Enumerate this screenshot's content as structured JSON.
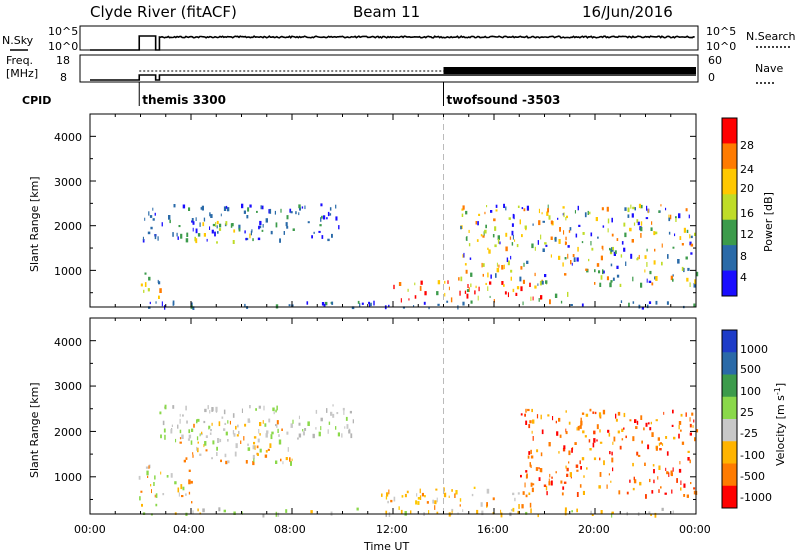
{
  "header": {
    "station": "Clyde River (fitACF)",
    "beam": "Beam 11",
    "date": "16/Jun/2016"
  },
  "top_panels": {
    "nsky_label": "N.Sky",
    "nsearch_label": "N.Search",
    "freq_label_line1": "Freq.",
    "freq_label_line2": "[MHz]",
    "nave_label": "Nave",
    "cpid_label": "CPID",
    "noise_ticks": [
      "10^5",
      "10^0"
    ],
    "noise_right_ticks": [
      "10^5",
      "10^0"
    ],
    "freq_ticks": [
      "18",
      "8"
    ],
    "nave_ticks": [
      "60",
      "0"
    ],
    "cpid_programs": [
      {
        "name": "themis 3300",
        "start_hour": 1.95
      },
      {
        "name": "twofsound -3503",
        "start_hour": 14.0
      }
    ]
  },
  "chart_data": [
    {
      "type": "heatmap",
      "name": "power",
      "xlabel": "",
      "ylabel": "Slant Range [km]",
      "x_range_hours": [
        0,
        24
      ],
      "ylim": [
        180,
        4500
      ],
      "y_ticks": [
        "1000",
        "2000",
        "3000",
        "4000"
      ],
      "colorbar": {
        "label": "Power [dB]",
        "ticks": [
          "28",
          "24",
          "20",
          "16",
          "12",
          "8",
          "4"
        ],
        "colors": [
          "#ff0000",
          "#ff7b00",
          "#ffc800",
          "#bfdc28",
          "#3c9b4b",
          "#2a6aa8",
          "#1a0dff"
        ]
      },
      "scatter_regions": [
        {
          "t_start": 2.0,
          "t_end": 10.0,
          "r_low": 1700,
          "r_high": 2500,
          "level": "low"
        },
        {
          "t_start": 4.0,
          "t_end": 6.5,
          "r_low": 1650,
          "r_high": 2150,
          "level": "mid"
        },
        {
          "t_start": 1.9,
          "t_end": 2.8,
          "r_low": 400,
          "r_high": 1100,
          "level": "mixed"
        },
        {
          "t_start": 12.0,
          "t_end": 19.0,
          "r_low": 350,
          "r_high": 800,
          "level": "high"
        },
        {
          "t_start": 14.5,
          "t_end": 24.0,
          "r_low": 700,
          "r_high": 2500,
          "level": "mixed"
        },
        {
          "t_start": 2.0,
          "t_end": 24.0,
          "r_low": 180,
          "r_high": 330,
          "level": "low"
        }
      ]
    },
    {
      "type": "heatmap",
      "name": "velocity",
      "xlabel": "Time UT",
      "ylabel": "Slant Range [km]",
      "x_range_hours": [
        0,
        24
      ],
      "ylim": [
        180,
        4500
      ],
      "x_ticks": [
        "00:00",
        "04:00",
        "08:00",
        "12:00",
        "16:00",
        "20:00",
        "00:00"
      ],
      "y_ticks": [
        "1000",
        "2000",
        "3000",
        "4000"
      ],
      "colorbar": {
        "label_main": "Velocity [m s",
        "label_sup": "-1",
        "label_end": "]",
        "ticks": [
          "1000",
          "500",
          "100",
          "25",
          "-25",
          "-100",
          "-500",
          "-1000"
        ],
        "colors": [
          "#1e3cc8",
          "#2a6aa8",
          "#3c9b4b",
          "#8ad84a",
          "#c8c8c8",
          "#ffb400",
          "#ff7b00",
          "#ff0000"
        ]
      },
      "scatter_regions": [
        {
          "t_start": 2.5,
          "t_end": 10.5,
          "r_low": 1800,
          "r_high": 2600,
          "level": "gray"
        },
        {
          "t_start": 3.5,
          "t_end": 8.0,
          "r_low": 1300,
          "r_high": 2300,
          "level": "orange"
        },
        {
          "t_start": 1.9,
          "t_end": 4.0,
          "r_low": 400,
          "r_high": 1300,
          "level": "orange"
        },
        {
          "t_start": 11.5,
          "t_end": 17.5,
          "r_low": 250,
          "r_high": 800,
          "level": "yellow"
        },
        {
          "t_start": 17.0,
          "t_end": 24.0,
          "r_low": 600,
          "r_high": 2500,
          "level": "red-orange"
        },
        {
          "t_start": 2.0,
          "t_end": 24.0,
          "r_low": 180,
          "r_high": 330,
          "level": "gray-green"
        }
      ]
    }
  ]
}
